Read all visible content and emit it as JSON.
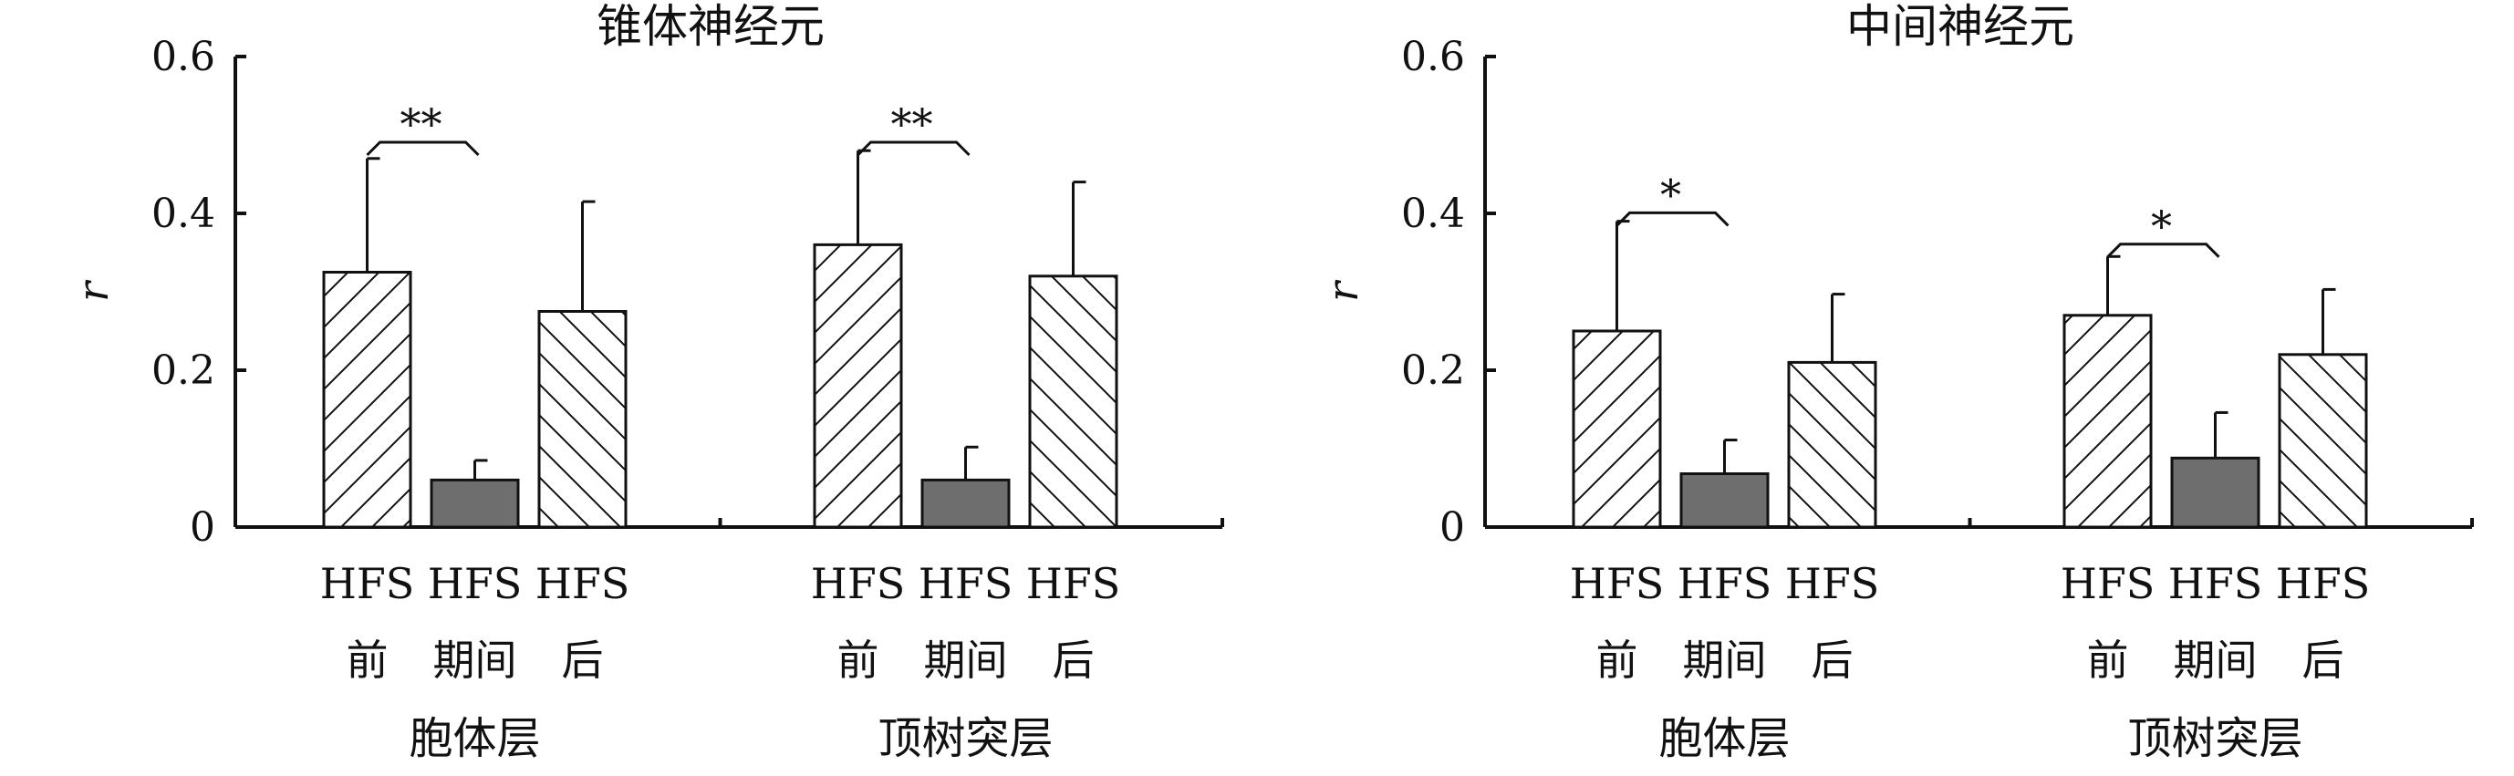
{
  "chart_data": [
    {
      "type": "bar",
      "title": "锥体神经元",
      "ylabel": "r",
      "ylim": [
        0,
        0.6
      ],
      "yticks": [
        "0",
        "0.2",
        "0.4",
        "0.6"
      ],
      "groups": [
        {
          "label": "胞体层",
          "bars": [
            {
              "label": [
                "HFS",
                "前"
              ],
              "value": 0.325,
              "error": 0.145,
              "pattern": "hatch-up"
            },
            {
              "label": [
                "HFS",
                "期间"
              ],
              "value": 0.06,
              "error": 0.025,
              "pattern": "solid"
            },
            {
              "label": [
                "HFS",
                "后"
              ],
              "value": 0.275,
              "error": 0.14,
              "pattern": "hatch-down"
            }
          ],
          "significance": {
            "from": 0,
            "to": 1,
            "label": "**",
            "y": 0.5
          }
        },
        {
          "label": "顶树突层",
          "bars": [
            {
              "label": [
                "HFS",
                "前"
              ],
              "value": 0.36,
              "error": 0.12,
              "pattern": "hatch-up"
            },
            {
              "label": [
                "HFS",
                "期间"
              ],
              "value": 0.06,
              "error": 0.042,
              "pattern": "solid"
            },
            {
              "label": [
                "HFS",
                "后"
              ],
              "value": 0.32,
              "error": 0.12,
              "pattern": "hatch-down"
            }
          ],
          "significance": {
            "from": 0,
            "to": 1,
            "label": "**",
            "y": 0.5
          }
        }
      ]
    },
    {
      "type": "bar",
      "title": "中间神经元",
      "ylabel": "r",
      "ylim": [
        0,
        0.6
      ],
      "yticks": [
        "0",
        "0.2",
        "0.4",
        "0.6"
      ],
      "groups": [
        {
          "label": "胞体层",
          "bars": [
            {
              "label": [
                "HFS",
                "前"
              ],
              "value": 0.25,
              "error": 0.14,
              "pattern": "hatch-up"
            },
            {
              "label": [
                "HFS",
                "期间"
              ],
              "value": 0.068,
              "error": 0.043,
              "pattern": "solid"
            },
            {
              "label": [
                "HFS",
                "后"
              ],
              "value": 0.21,
              "error": 0.087,
              "pattern": "hatch-down"
            }
          ],
          "significance": {
            "from": 0,
            "to": 1,
            "label": "*",
            "y": 0.41
          }
        },
        {
          "label": "顶树突层",
          "bars": [
            {
              "label": [
                "HFS",
                "前"
              ],
              "value": 0.27,
              "error": 0.075,
              "pattern": "hatch-up"
            },
            {
              "label": [
                "HFS",
                "期间"
              ],
              "value": 0.088,
              "error": 0.058,
              "pattern": "solid"
            },
            {
              "label": [
                "HFS",
                "后"
              ],
              "value": 0.22,
              "error": 0.083,
              "pattern": "hatch-down"
            }
          ],
          "significance": {
            "from": 0,
            "to": 1,
            "label": "*",
            "y": 0.37
          }
        }
      ]
    }
  ]
}
